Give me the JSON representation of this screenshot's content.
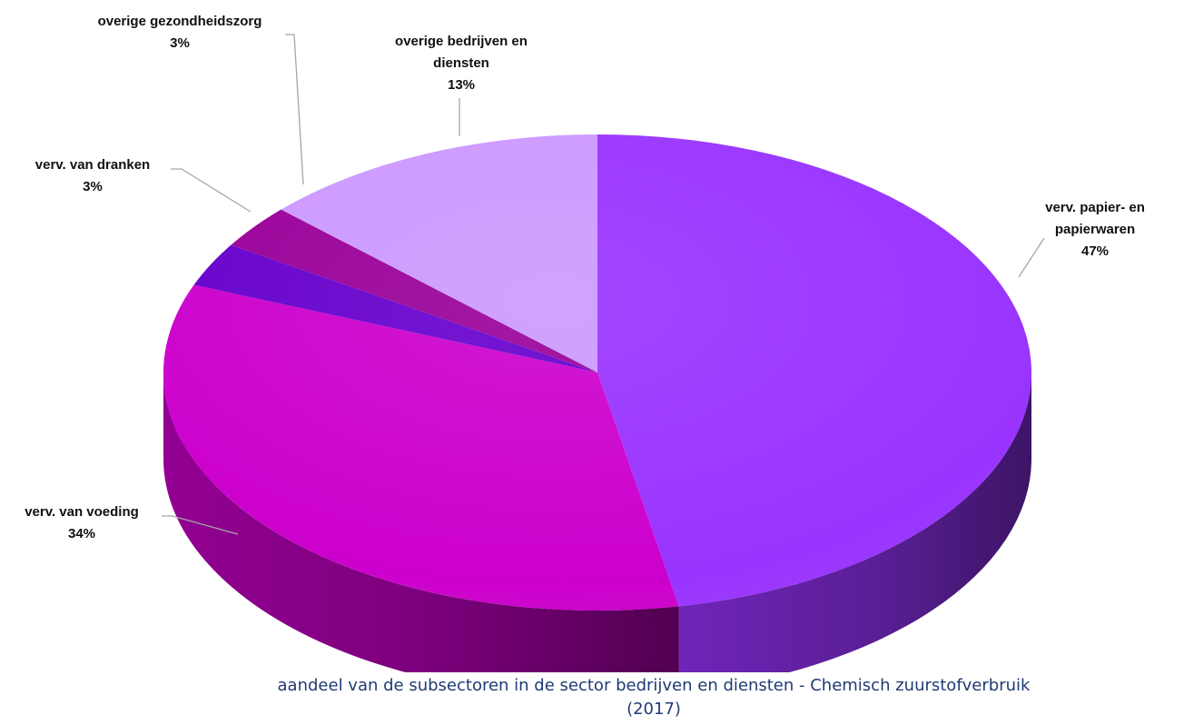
{
  "chart_data": {
    "type": "pie",
    "style": "3d",
    "title_line1": "aandeel van de subsectoren in de sector bedrijven en diensten - Chemisch zuurstofverbruik",
    "title_line2": "(2017)",
    "legend": "none",
    "slices": [
      {
        "label": [
          "verv. papier- en",
          "papierwaren"
        ],
        "value_label": "47%",
        "value": 47,
        "color": "#9933ff"
      },
      {
        "label": [
          "verv. van voeding"
        ],
        "value_label": "34%",
        "value": 34,
        "color": "#cc00cc"
      },
      {
        "label": [
          "verv. van dranken"
        ],
        "value_label": "3%",
        "value": 3,
        "color": "#6600cc"
      },
      {
        "label": [
          "overige gezondheidszorg"
        ],
        "value_label": "3%",
        "value": 3,
        "color": "#990099"
      },
      {
        "label": [
          "overige bedrijven en",
          "diensten"
        ],
        "value_label": "13%",
        "value": 13,
        "color": "#cc99ff"
      }
    ]
  }
}
